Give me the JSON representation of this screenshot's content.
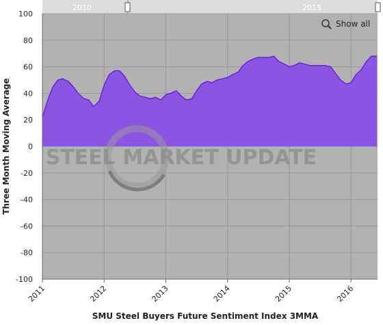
{
  "chart_data": {
    "type": "area",
    "x_label": "SMU Steel Buyers Future Sentiment Index 3MMA",
    "y_label": "Three Month Moving Average",
    "watermark": "STEEL MARKET UPDATE",
    "reset_zoom_label": "Show all",
    "navigator_labels": [
      "2010",
      "2015"
    ],
    "x": [
      2011,
      2011.08,
      2011.17,
      2011.25,
      2011.33,
      2011.42,
      2011.5,
      2011.58,
      2011.67,
      2011.75,
      2011.83,
      2011.92,
      2012,
      2012.08,
      2012.17,
      2012.25,
      2012.33,
      2012.42,
      2012.5,
      2012.58,
      2012.67,
      2012.75,
      2012.83,
      2012.92,
      2013,
      2013.08,
      2013.17,
      2013.25,
      2013.33,
      2013.42,
      2013.5,
      2013.58,
      2013.67,
      2013.75,
      2013.83,
      2013.92,
      2014,
      2014.08,
      2014.17,
      2014.25,
      2014.33,
      2014.42,
      2014.5,
      2014.58,
      2014.67,
      2014.75,
      2014.83,
      2014.92,
      2015,
      2015.08,
      2015.17,
      2015.25,
      2015.33,
      2015.42,
      2015.5,
      2015.58,
      2015.67,
      2015.75,
      2015.83,
      2015.92,
      2016,
      2016.08,
      2016.17,
      2016.25,
      2016.33,
      2016.42
    ],
    "series": [
      {
        "name": "SMU Steel Buyers Future Sentiment Index 3MMA",
        "color": "#8b55e3",
        "line_color": "#6a22d8",
        "values": [
          22,
          34,
          45,
          50,
          51,
          49,
          45,
          40,
          36,
          35,
          30,
          34,
          46,
          54,
          57,
          57,
          53,
          46,
          41,
          38,
          37,
          36,
          37,
          35,
          39,
          40,
          42,
          38,
          35,
          36,
          42,
          47,
          49,
          48,
          50,
          51,
          52,
          54,
          56,
          61,
          64,
          66,
          67,
          67,
          67,
          68,
          64,
          62,
          60,
          61,
          63,
          62,
          61,
          61,
          61,
          61,
          60,
          55,
          50,
          47,
          48,
          54,
          58,
          64,
          68,
          68
        ]
      }
    ],
    "xlim": [
      2011,
      2016.43
    ],
    "xticks": [
      2011,
      2012,
      2013,
      2014,
      2015,
      2016
    ],
    "ylim": [
      -100,
      100
    ],
    "yticks": [
      -100,
      -80,
      -60,
      -40,
      -20,
      0,
      20,
      40,
      60,
      80,
      100
    ],
    "grid": true
  }
}
